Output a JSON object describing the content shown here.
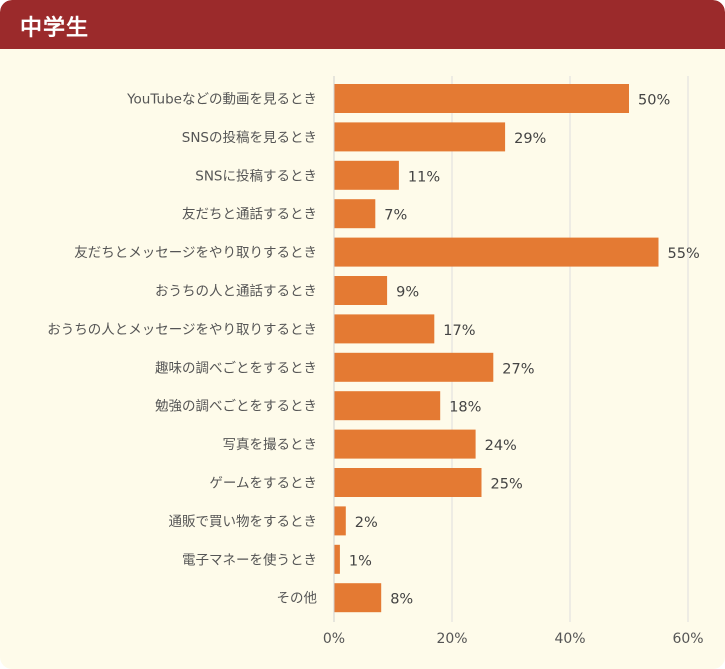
{
  "header": {
    "title": "中学生"
  },
  "colors": {
    "header_bg": "#9b2a2b",
    "panel_bg": "#fefbea",
    "bar": "#e47a33",
    "grid": "#dddddd"
  },
  "chart_data": {
    "type": "bar",
    "orientation": "horizontal",
    "title": "",
    "xlabel": "",
    "ylabel": "",
    "xlim": [
      0,
      60
    ],
    "ticks": [
      0,
      20,
      40,
      60
    ],
    "tick_labels": [
      "0%",
      "20%",
      "40%",
      "60%"
    ],
    "grid": true,
    "categories": [
      "YouTubeなどの動画を見るとき",
      "SNSの投稿を見るとき",
      "SNSに投稿するとき",
      "友だちと通話するとき",
      "友だちとメッセージをやり取りするとき",
      "おうちの人と通話するとき",
      "おうちの人とメッセージをやり取りするとき",
      "趣味の調べごとをするとき",
      "勉強の調べごとをするとき",
      "写真を撮るとき",
      "ゲームをするとき",
      "通販で買い物をするとき",
      "電子マネーを使うとき",
      "その他"
    ],
    "values": [
      50,
      29,
      11,
      7,
      55,
      9,
      17,
      27,
      18,
      24,
      25,
      2,
      1,
      8
    ],
    "value_labels": [
      "50%",
      "29%",
      "11%",
      "7%",
      "55%",
      "9%",
      "17%",
      "27%",
      "18%",
      "24%",
      "25%",
      "2%",
      "1%",
      "8%"
    ]
  }
}
